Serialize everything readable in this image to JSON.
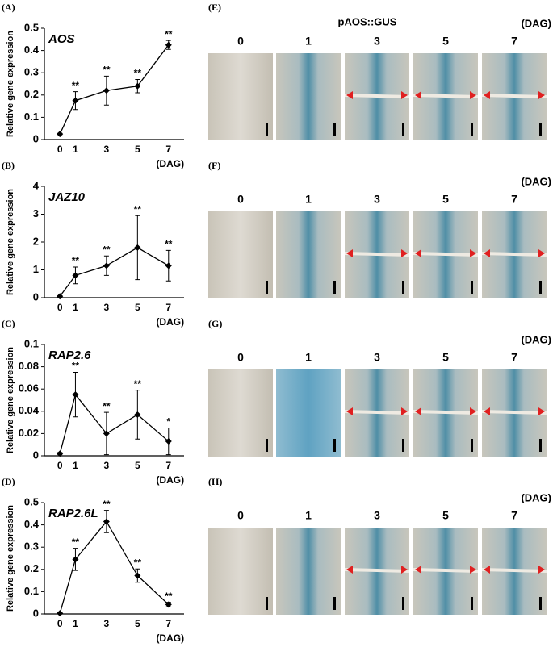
{
  "chart_data": [
    {
      "type": "line",
      "panel_label": "(A)",
      "gene": "AOS",
      "y_label": "Relative gene expression",
      "x_label": "(DAG)",
      "x": [
        0,
        1,
        3,
        5,
        7
      ],
      "xlim": [
        -1,
        8
      ],
      "values": [
        0.025,
        0.175,
        0.22,
        0.24,
        0.425
      ],
      "errors": [
        0.003,
        0.04,
        0.065,
        0.03,
        0.02
      ],
      "annotations": [
        null,
        "**",
        "**",
        "**",
        "**"
      ],
      "ylim": [
        0,
        0.5
      ],
      "yticks": [
        0,
        0.1,
        0.2,
        0.3,
        0.4,
        0.5
      ],
      "color": "#000000"
    },
    {
      "type": "line",
      "panel_label": "(B)",
      "gene": "JAZ10",
      "y_label": "Relative gene expression",
      "x_label": "(DAG)",
      "x": [
        0,
        1,
        3,
        5,
        7
      ],
      "xlim": [
        -1,
        8
      ],
      "values": [
        0.05,
        0.8,
        1.15,
        1.8,
        1.15
      ],
      "errors": [
        0.02,
        0.3,
        0.35,
        1.15,
        0.55
      ],
      "annotations": [
        null,
        "**",
        "**",
        "**",
        "**"
      ],
      "ylim": [
        0,
        4
      ],
      "yticks": [
        0,
        1,
        2,
        3,
        4
      ],
      "color": "#000000"
    },
    {
      "type": "line",
      "panel_label": "(C)",
      "gene": "RAP2.6",
      "y_label": "Relative gene expression",
      "x_label": "(DAG)",
      "x": [
        0,
        1,
        3,
        5,
        7
      ],
      "xlim": [
        -1,
        8
      ],
      "values": [
        0.002,
        0.055,
        0.02,
        0.037,
        0.013
      ],
      "errors": [
        0.001,
        0.02,
        0.019,
        0.022,
        0.012
      ],
      "annotations": [
        null,
        "**",
        "**",
        "**",
        "*"
      ],
      "ylim": [
        0,
        0.1
      ],
      "yticks": [
        0,
        0.02,
        0.04,
        0.06,
        0.08,
        0.1
      ],
      "color": "#000000"
    },
    {
      "type": "line",
      "panel_label": "(D)",
      "gene": "RAP2.6L",
      "y_label": "Relative gene expression",
      "x_label": "(DAG)",
      "x": [
        0,
        1,
        3,
        5,
        7
      ],
      "xlim": [
        -1,
        8
      ],
      "values": [
        0.003,
        0.245,
        0.415,
        0.172,
        0.042
      ],
      "errors": [
        0.001,
        0.05,
        0.05,
        0.03,
        0.01
      ],
      "annotations": [
        null,
        "**",
        "**",
        "**",
        "**"
      ],
      "ylim": [
        0,
        0.5
      ],
      "yticks": [
        0,
        0.1,
        0.2,
        0.3,
        0.4,
        0.5
      ],
      "color": "#000000"
    }
  ],
  "image_panels": [
    {
      "label": "(E)",
      "title": "pAOS::GUS",
      "unit": "(DAG)",
      "columns": [
        "0",
        "1",
        "3",
        "5",
        "7"
      ]
    },
    {
      "label": "(F)",
      "unit": "(DAG)",
      "columns": [
        "0",
        "1",
        "3",
        "5",
        "7"
      ]
    },
    {
      "label": "(G)",
      "unit": "(DAG)",
      "columns": [
        "0",
        "1",
        "3",
        "5",
        "7"
      ]
    },
    {
      "label": "(H)",
      "unit": "(DAG)",
      "columns": [
        "0",
        "1",
        "3",
        "5",
        "7"
      ]
    }
  ]
}
